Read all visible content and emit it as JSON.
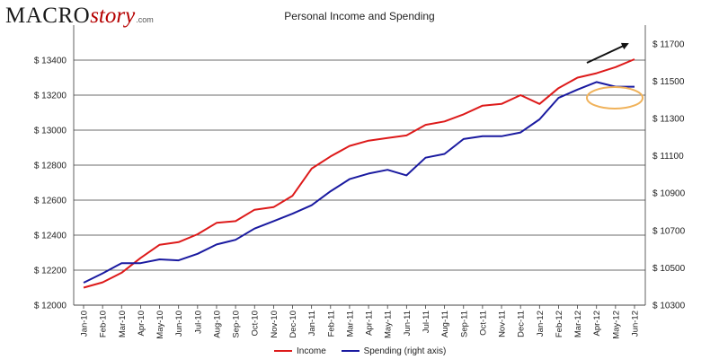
{
  "logo": {
    "macro": "MACRO",
    "story": "story",
    "dotcom": ".com"
  },
  "chart_data": {
    "type": "line",
    "title": "Personal Income and Spending",
    "categories": [
      "Jan-10",
      "Feb-10",
      "Mar-10",
      "Apr-10",
      "May-10",
      "Jun-10",
      "Jul-10",
      "Aug-10",
      "Sep-10",
      "Oct-10",
      "Nov-10",
      "Dec-10",
      "Jan-11",
      "Feb-11",
      "Mar-11",
      "Apr-11",
      "May-11",
      "Jun-11",
      "Jul-11",
      "Aug-11",
      "Sep-11",
      "Oct-11",
      "Nov-11",
      "Dec-11",
      "Jan-12",
      "Feb-12",
      "Mar-12",
      "Apr-12",
      "May-12",
      "Jun-12"
    ],
    "left_axis": {
      "ylim": [
        12000,
        13600
      ],
      "ticks": [
        12000,
        12200,
        12400,
        12600,
        12800,
        13000,
        13200,
        13400
      ],
      "tick_labels": [
        "$ 12000",
        "$ 12200",
        "$ 12400",
        "$ 12600",
        "$ 12800",
        "$ 13000",
        "$ 13200",
        "$ 13400"
      ]
    },
    "right_axis": {
      "ylim": [
        10300,
        11800
      ],
      "ticks": [
        10300,
        10500,
        10700,
        10900,
        11100,
        11300,
        11500,
        11700
      ],
      "tick_labels": [
        "$ 10300",
        "$ 10500",
        "$ 10700",
        "$ 10900",
        "$ 11100",
        "$ 11300",
        "$ 11500",
        "$ 11700"
      ]
    },
    "series": [
      {
        "name": "Income",
        "axis": "left",
        "color": "#dd1a1a",
        "values": [
          12100,
          12130,
          12185,
          12270,
          12345,
          12360,
          12405,
          12470,
          12480,
          12545,
          12560,
          12625,
          12780,
          12850,
          12910,
          12940,
          12955,
          12970,
          13030,
          13050,
          13090,
          13140,
          13150,
          13200,
          13150,
          13240,
          13300,
          13325,
          13360,
          13405
        ]
      },
      {
        "name": "Spending (right axis)",
        "axis": "right",
        "color": "#1a1aa0",
        "values": [
          10420,
          10470,
          10525,
          10525,
          10545,
          10540,
          10575,
          10625,
          10650,
          10710,
          10750,
          10790,
          10835,
          10910,
          10975,
          11005,
          11025,
          10995,
          11090,
          11110,
          11190,
          11205,
          11205,
          11225,
          11295,
          11410,
          11455,
          11495,
          11470,
          11470
        ]
      }
    ],
    "annotations": [
      {
        "type": "arrow",
        "description": "upward trend arrow above income line",
        "color": "#111111"
      },
      {
        "type": "ellipse",
        "description": "highlight around flat spending Apr-12 to Jun-12",
        "color": "#f0b25a"
      }
    ],
    "grid": true,
    "legend_position": "bottom"
  }
}
